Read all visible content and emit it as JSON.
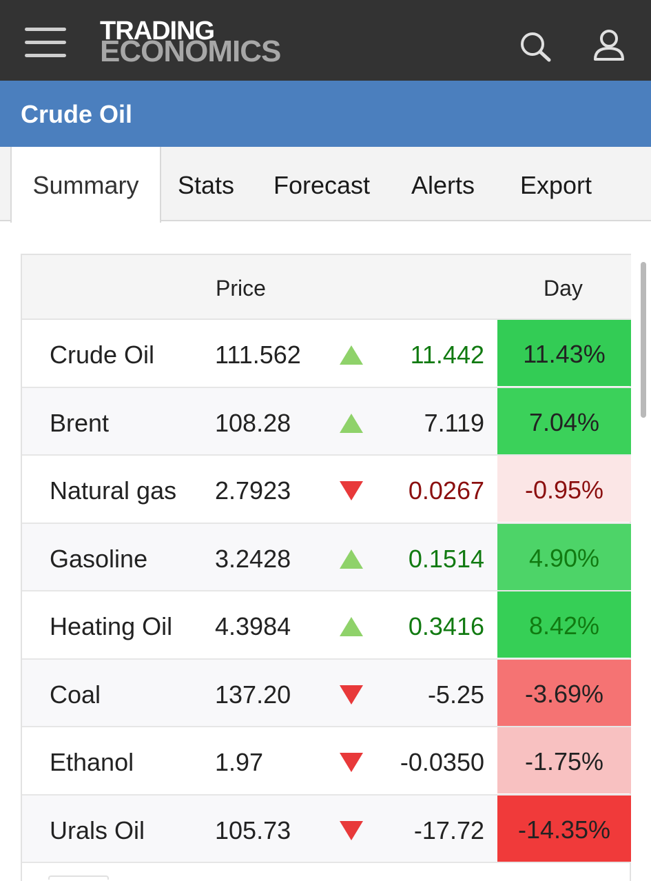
{
  "header": {
    "logo_line1": "TRADING",
    "logo_line2": "ECONOMICS",
    "menu_icon": "hamburger-menu-icon",
    "search_icon": "search-icon",
    "user_icon": "user-icon"
  },
  "page": {
    "title": "Crude Oil"
  },
  "tabs": [
    {
      "label": "Summary",
      "active": true
    },
    {
      "label": "Stats"
    },
    {
      "label": "Forecast"
    },
    {
      "label": "Alerts"
    },
    {
      "label": "Export"
    }
  ],
  "table": {
    "headers": {
      "price": "Price",
      "day": "Day"
    },
    "rows": [
      {
        "name": "Crude Oil",
        "price": "111.562",
        "direction": "up",
        "change": "11.442",
        "change_color": "#117a11",
        "day": "11.43%",
        "day_color": "#222222",
        "day_bg": "#33cc55"
      },
      {
        "name": "Brent",
        "price": "108.28",
        "direction": "up",
        "change": "7.119",
        "change_color": "#222222",
        "day": "7.04%",
        "day_color": "#222222",
        "day_bg": "#3bd15a"
      },
      {
        "name": "Natural gas",
        "price": "2.7923",
        "direction": "down",
        "change": "0.0267",
        "change_color": "#8b0f0f",
        "day": "-0.95%",
        "day_color": "#8b0f0f",
        "day_bg": "#fbe6e6"
      },
      {
        "name": "Gasoline",
        "price": "3.2428",
        "direction": "up",
        "change": "0.1514",
        "change_color": "#117a11",
        "day": "4.90%",
        "day_color": "#117a11",
        "day_bg": "#4dd468"
      },
      {
        "name": "Heating Oil",
        "price": "4.3984",
        "direction": "up",
        "change": "0.3416",
        "change_color": "#117a11",
        "day": "8.42%",
        "day_color": "#117a11",
        "day_bg": "#36cf56"
      },
      {
        "name": "Coal",
        "price": "137.20",
        "direction": "down",
        "change": "-5.25",
        "change_color": "#222222",
        "day": "-3.69%",
        "day_color": "#222222",
        "day_bg": "#f57373"
      },
      {
        "name": "Ethanol",
        "price": "1.97",
        "direction": "down",
        "change": "-0.0350",
        "change_color": "#222222",
        "day": "-1.75%",
        "day_color": "#222222",
        "day_bg": "#f8c1c1"
      },
      {
        "name": "Urals Oil",
        "price": "105.73",
        "direction": "down",
        "change": "-17.72",
        "change_color": "#222222",
        "day": "-14.35%",
        "day_color": "#222222",
        "day_bg": "#f03a3a"
      }
    ]
  },
  "colors": {
    "header_bg": "#333333",
    "title_bar_bg": "#4b7fbe",
    "arrow_up": "#8fd26a",
    "arrow_down": "#e8393a"
  }
}
